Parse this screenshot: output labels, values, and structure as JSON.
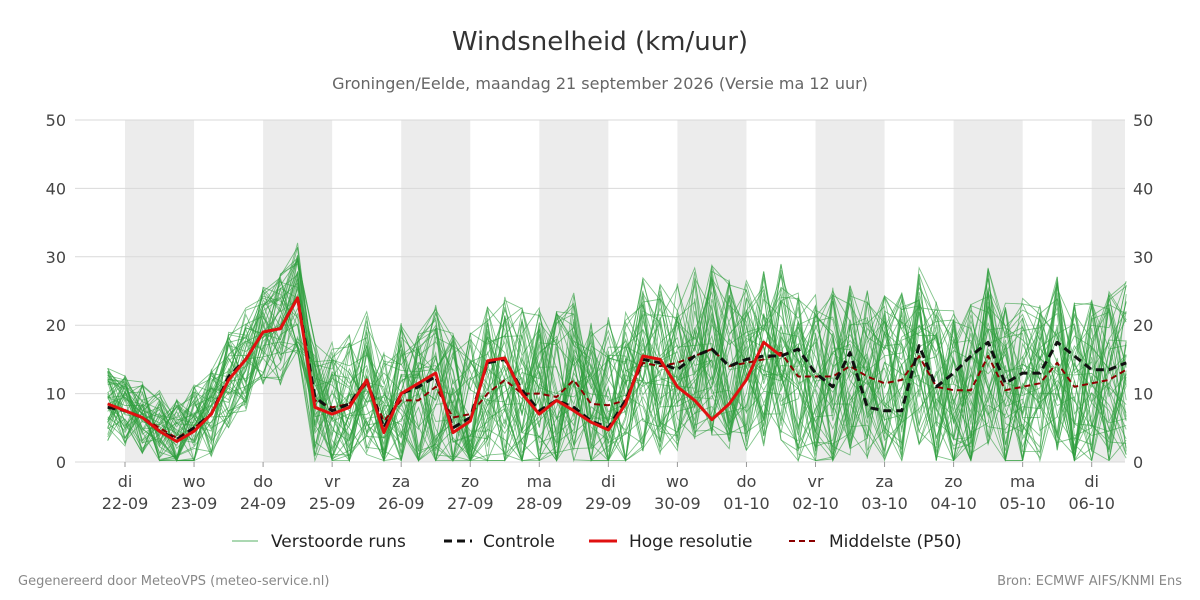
{
  "header": {
    "title": "Windsnelheid (km/uur)",
    "subtitle": "Groningen/Eelde, maandag 21 september 2026 (Versie ma 12 uur)"
  },
  "footer": {
    "left": "Gegenereerd door MeteoVPS (meteo-service.nl)",
    "right": "Bron: ECMWF AIFS/KNMI Ens"
  },
  "legend": {
    "members": "Verstoorde runs",
    "control": "Controle",
    "hires": "Hoge resolutie",
    "median": "Middelste (P50)"
  },
  "colors": {
    "members": "#2e9e3e",
    "control": "#111111",
    "hires": "#e01010",
    "median": "#8b0000",
    "weekend_band": "#ececec",
    "grid": "#d9d9d9"
  },
  "chart_data": {
    "type": "line",
    "title": "Windsnelheid (km/uur)",
    "ylim": [
      0,
      50
    ],
    "yticks": [
      0,
      10,
      20,
      30,
      40,
      50
    ],
    "grid": true,
    "legend_position": "bottom",
    "x_unit": "days since 22-09 00:00 (label positions at day start)",
    "xlim": [
      -0.25,
      14.5
    ],
    "x_ticks": [
      {
        "day": "di",
        "date": "22-09"
      },
      {
        "day": "wo",
        "date": "23-09"
      },
      {
        "day": "do",
        "date": "24-09"
      },
      {
        "day": "vr",
        "date": "25-09"
      },
      {
        "day": "za",
        "date": "26-09"
      },
      {
        "day": "zo",
        "date": "27-09"
      },
      {
        "day": "ma",
        "date": "28-09"
      },
      {
        "day": "di",
        "date": "29-09"
      },
      {
        "day": "wo",
        "date": "30-09"
      },
      {
        "day": "do",
        "date": "01-10"
      },
      {
        "day": "vr",
        "date": "02-10"
      },
      {
        "day": "za",
        "date": "03-10"
      },
      {
        "day": "zo",
        "date": "04-10"
      },
      {
        "day": "ma",
        "date": "05-10"
      },
      {
        "day": "di",
        "date": "06-10"
      }
    ],
    "shaded_day_bands": [
      0,
      2,
      4,
      6,
      8,
      10,
      12,
      14
    ],
    "series": [
      {
        "name": "Hoge resolutie",
        "x": [
          -0.25,
          0,
          0.25,
          0.5,
          0.75,
          1,
          1.25,
          1.5,
          1.75,
          2,
          2.25,
          2.5,
          2.75,
          3,
          3.25,
          3.5,
          3.75,
          4,
          4.25,
          4.5,
          4.75,
          5,
          5.25,
          5.5,
          5.75,
          6,
          6.25,
          6.5,
          6.75,
          7,
          7.25,
          7.5,
          7.75,
          8,
          8.25,
          8.5,
          8.75,
          9,
          9.25,
          9.5
        ],
        "values": [
          8.5,
          7.5,
          6.5,
          4.5,
          3.0,
          4.5,
          7,
          12,
          15,
          19,
          19.5,
          24,
          8,
          7,
          8,
          12,
          4.3,
          10,
          11.5,
          13,
          4.3,
          6,
          14.8,
          15.2,
          10,
          7,
          9,
          7.5,
          5.8,
          4.7,
          8.5,
          15.5,
          15,
          11,
          9,
          6.2,
          8.5,
          12,
          17.5,
          15.5
        ]
      },
      {
        "name": "Controle",
        "x": [
          -0.25,
          0,
          0.25,
          0.5,
          0.75,
          1,
          1.25,
          1.5,
          1.75,
          2,
          2.25,
          2.5,
          2.75,
          3,
          3.25,
          3.5,
          3.75,
          4,
          4.25,
          4.5,
          4.75,
          5,
          5.25,
          5.5,
          5.75,
          6,
          6.25,
          6.5,
          6.75,
          7,
          7.25,
          7.5,
          7.75,
          8,
          8.25,
          8.5,
          8.75,
          9,
          9.25,
          9.5,
          9.75,
          10,
          10.25,
          10.5,
          10.75,
          11,
          11.25,
          11.5,
          11.75,
          12,
          12.25,
          12.5,
          12.75,
          13,
          13.25,
          13.5,
          13.75,
          14,
          14.25,
          14.5
        ],
        "values": [
          8,
          7.5,
          6.5,
          4.5,
          3.3,
          5,
          7,
          12.5,
          15,
          19,
          19.5,
          24,
          9.5,
          7.5,
          8.5,
          12,
          5,
          10,
          11,
          12.5,
          5,
          6.5,
          14.5,
          15,
          10.5,
          7.5,
          9,
          8,
          6,
          5,
          9,
          15,
          14.5,
          13.5,
          15.5,
          16.5,
          14,
          15,
          15.5,
          15.5,
          16.5,
          13,
          11,
          16,
          8,
          7.5,
          7.5,
          17,
          11,
          13,
          15.5,
          17.5,
          11.5,
          13,
          13,
          17.5,
          15.5,
          13.5,
          13.5,
          14.5
        ]
      },
      {
        "name": "Middelste (P50)",
        "x": [
          -0.25,
          0,
          0.25,
          0.5,
          0.75,
          1,
          1.25,
          1.5,
          1.75,
          2,
          2.25,
          2.5,
          2.75,
          3,
          3.25,
          3.5,
          3.75,
          4,
          4.25,
          4.5,
          4.75,
          5,
          5.25,
          5.5,
          5.75,
          6,
          6.25,
          6.5,
          6.75,
          7,
          7.25,
          7.5,
          7.75,
          8,
          8.25,
          8.5,
          8.75,
          9,
          9.25,
          9.5,
          9.75,
          10,
          10.25,
          10.5,
          10.75,
          11,
          11.25,
          11.5,
          11.75,
          12,
          12.25,
          12.5,
          12.75,
          13,
          13.25,
          13.5,
          13.75,
          14,
          14.25,
          14.5
        ],
        "values": [
          8.5,
          7.5,
          6.5,
          5,
          3.5,
          5,
          7,
          12,
          15,
          19,
          19.5,
          24,
          9,
          8,
          8.5,
          11.5,
          6,
          9,
          9,
          11,
          6.5,
          7,
          10,
          12,
          10,
          10,
          9.5,
          12,
          8.5,
          8.3,
          9,
          14.5,
          14,
          14.5,
          15.5,
          16.5,
          14,
          14.5,
          15,
          16,
          12.5,
          12.5,
          12.5,
          14,
          12.5,
          11.5,
          12,
          15.5,
          11,
          10.5,
          10.5,
          15.5,
          10.5,
          11,
          11.5,
          14.5,
          11,
          11.5,
          12,
          13.5
        ]
      }
    ]
  }
}
